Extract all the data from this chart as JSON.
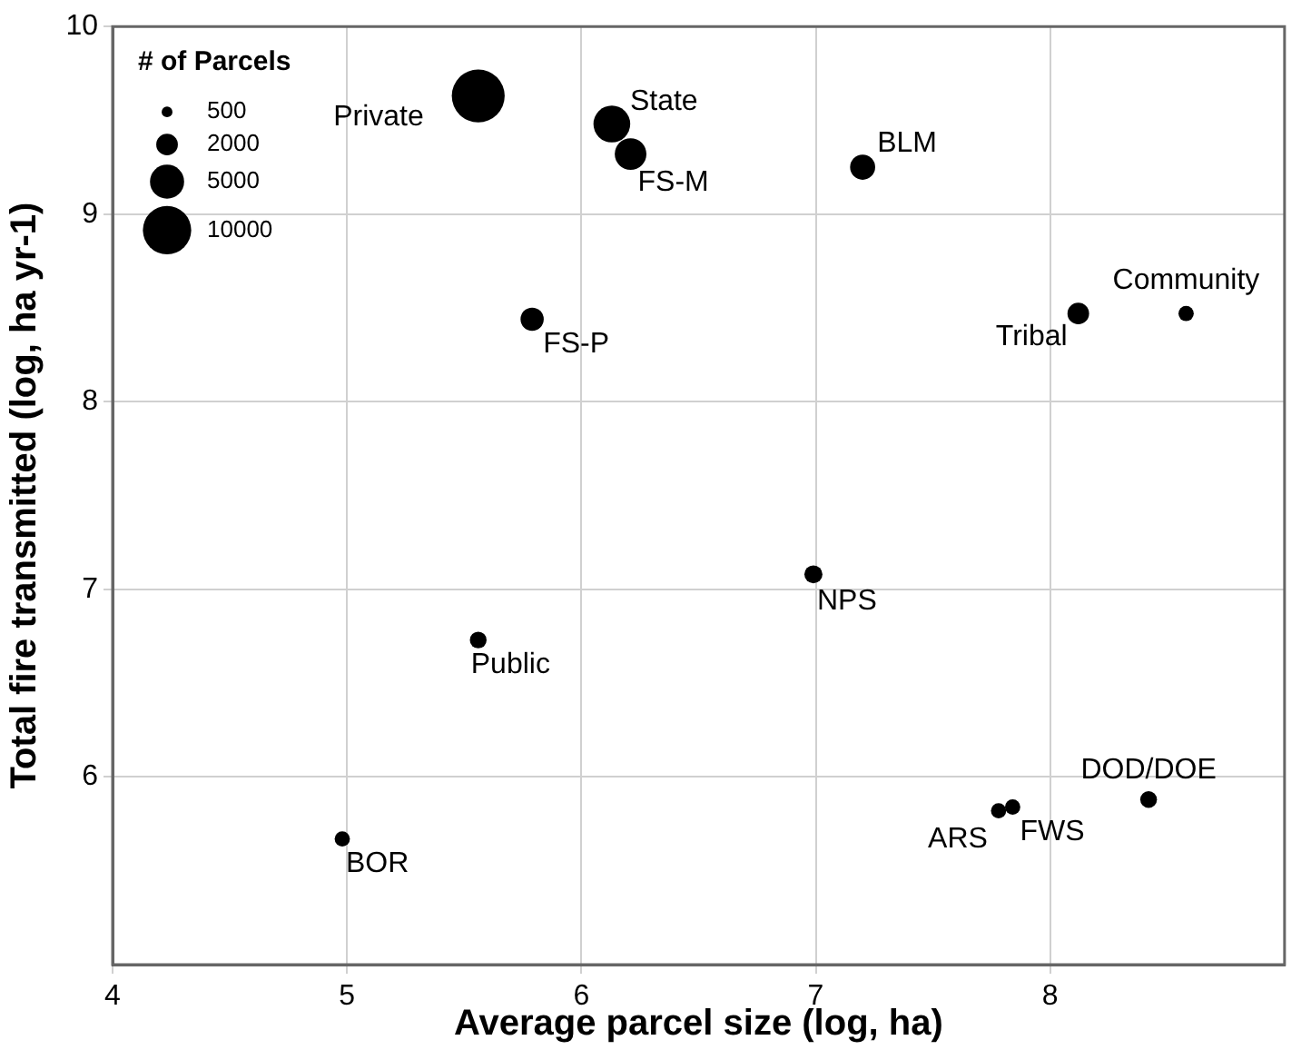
{
  "chart_data": {
    "type": "bubble",
    "xlabel": "Average parcel size (log, ha)",
    "ylabel": "Total fire transmitted (log, ha yr-1)",
    "xlim": [
      4,
      9
    ],
    "xticks": [
      4,
      5,
      6,
      7,
      8
    ],
    "ylim": [
      5,
      10
    ],
    "yticks": [
      6,
      7,
      8,
      9,
      10
    ],
    "grid": true,
    "legend_title": "# of Parcels",
    "size_legend": [
      500,
      2000,
      5000,
      10000
    ],
    "x": [
      5.56,
      6.13,
      6.21,
      7.2,
      5.79,
      8.12,
      8.58,
      6.99,
      5.56,
      4.98,
      7.78,
      7.84,
      8.42
    ],
    "values": [
      9.63,
      9.48,
      9.32,
      9.25,
      8.44,
      8.47,
      8.47,
      7.08,
      6.73,
      5.67,
      5.82,
      5.84,
      5.88
    ],
    "sizes": [
      12000,
      5800,
      4300,
      2700,
      2300,
      2000,
      1000,
      1400,
      1200,
      1000,
      1000,
      1000,
      1200
    ],
    "color": "#000000",
    "annotations": [
      {
        "text": "Private",
        "x": 5.56,
        "y": 9.63
      },
      {
        "text": "State",
        "x": 6.13,
        "y": 9.48
      },
      {
        "text": "FS-M",
        "x": 6.21,
        "y": 9.32
      },
      {
        "text": "BLM",
        "x": 7.2,
        "y": 9.25
      },
      {
        "text": "FS-P",
        "x": 5.79,
        "y": 8.44
      },
      {
        "text": "Tribal",
        "x": 8.12,
        "y": 8.47
      },
      {
        "text": "Community",
        "x": 8.58,
        "y": 8.47
      },
      {
        "text": "NPS",
        "x": 6.99,
        "y": 7.08
      },
      {
        "text": "Public",
        "x": 5.56,
        "y": 6.73
      },
      {
        "text": "BOR",
        "x": 4.98,
        "y": 5.67
      },
      {
        "text": "ARS",
        "x": 7.78,
        "y": 5.82
      },
      {
        "text": "FWS",
        "x": 7.84,
        "y": 5.84
      },
      {
        "text": "DOD/DOE",
        "x": 8.42,
        "y": 5.88
      }
    ]
  }
}
